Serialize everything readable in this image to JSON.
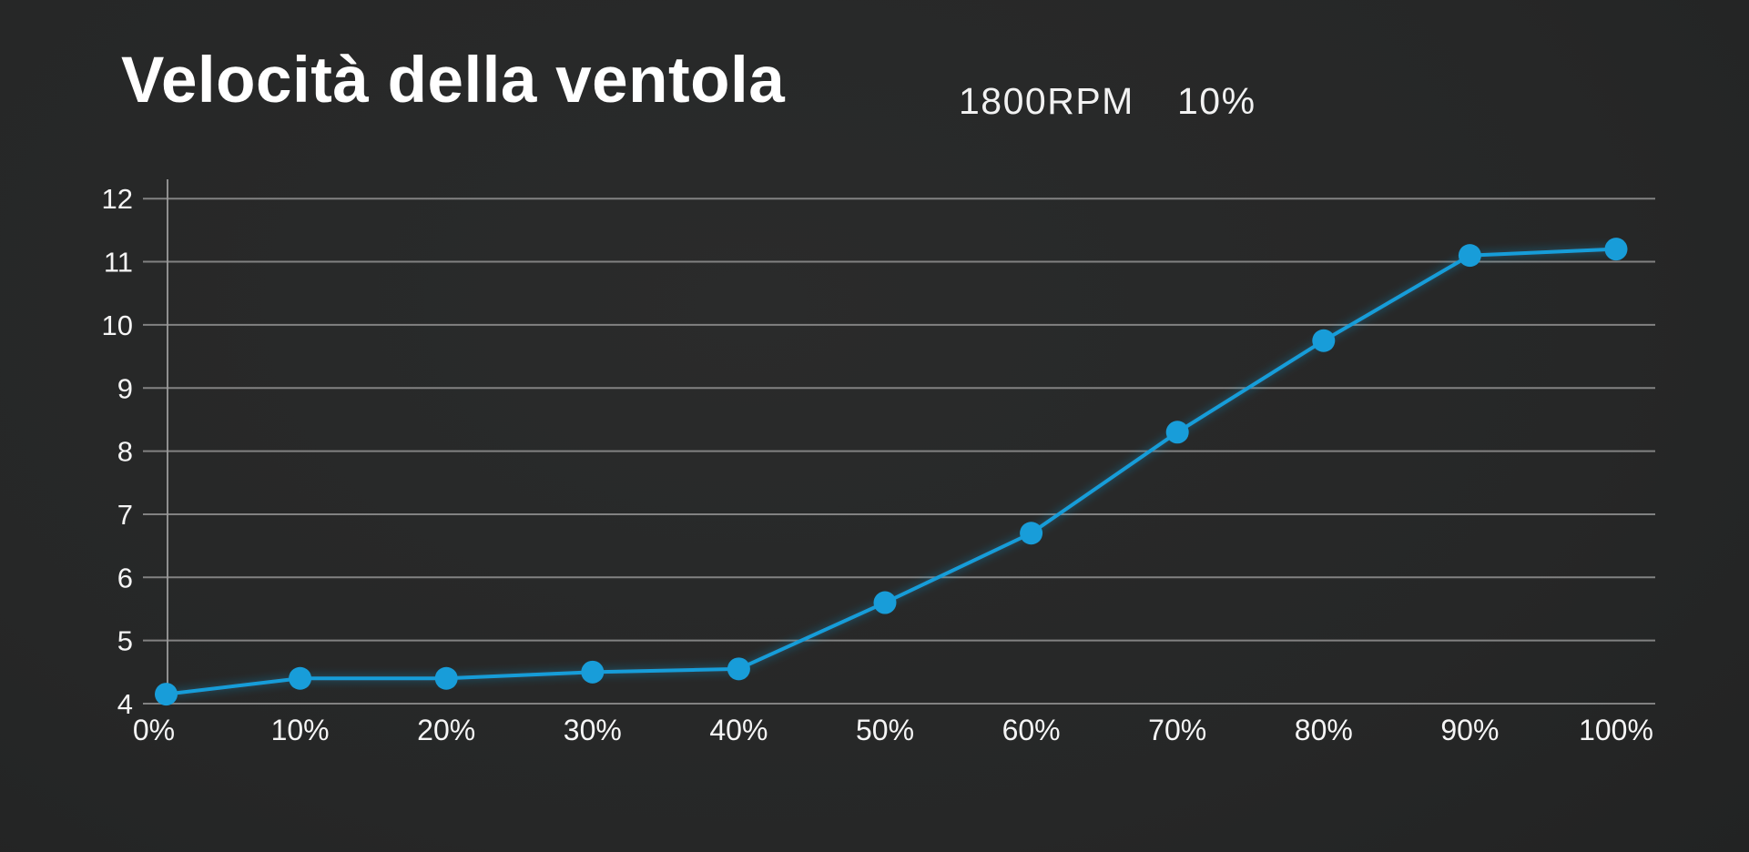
{
  "header": {
    "title": "Velocità della ventola",
    "rpm_readout": "1800RPM",
    "duty_readout": "10%"
  },
  "colors": {
    "accent": "#189dd9",
    "grid": "#8c8c8c",
    "axis": "#9b9b9b",
    "text": "#ffffff",
    "tick_text": "#f5f5f5",
    "background_center": "#272828",
    "background_edge": "#161717"
  },
  "chart_data": {
    "type": "line",
    "title": "Velocità della ventola",
    "categories": [
      "0%",
      "10%",
      "20%",
      "30%",
      "40%",
      "50%",
      "60%",
      "70%",
      "80%",
      "90%",
      "100%"
    ],
    "x_percent": [
      0,
      10,
      20,
      30,
      40,
      50,
      60,
      70,
      80,
      90,
      100
    ],
    "series": [
      {
        "name": "Velocità della ventola",
        "values": [
          4.15,
          4.4,
          4.4,
          4.5,
          4.55,
          5.6,
          6.7,
          8.3,
          9.75,
          11.1,
          11.2
        ]
      }
    ],
    "xlabel": "",
    "ylabel": "",
    "ylim": [
      4,
      12
    ],
    "y_ticks": [
      4,
      5,
      6,
      7,
      8,
      9,
      10,
      11,
      12
    ],
    "grid": "horizontal",
    "legend_position": "none",
    "marker": "circle",
    "line_color": "#189dd9",
    "marker_color": "#189dd9"
  }
}
